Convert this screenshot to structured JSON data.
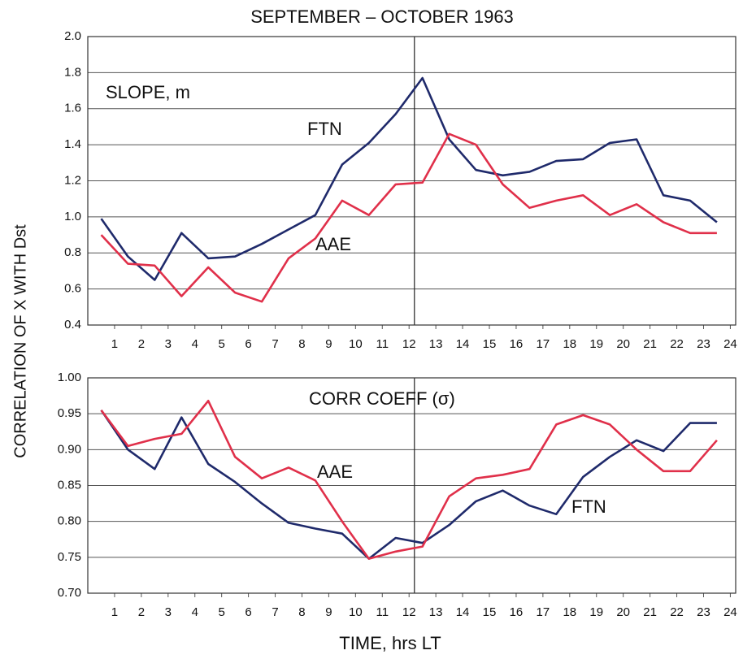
{
  "title": "SEPTEMBER – OCTOBER 1963",
  "y_label": "CORRELATION OF X WITH Dst",
  "x_label": "TIME, hrs LT",
  "chart_data": [
    {
      "type": "line",
      "subtitle": "SLOPE, m",
      "x": [
        0.5,
        1.5,
        2.5,
        3.5,
        4.5,
        5.5,
        6.5,
        7.5,
        8.5,
        9.5,
        10.5,
        11.5,
        12.5,
        13.5,
        14.5,
        15.5,
        16.5,
        17.5,
        18.5,
        19.5,
        20.5,
        21.5,
        22.5,
        23.5
      ],
      "series": [
        {
          "name": "FTN",
          "color": "#1f2a6b",
          "values": [
            0.99,
            0.78,
            0.65,
            0.91,
            0.77,
            0.78,
            0.85,
            0.93,
            1.01,
            1.29,
            1.41,
            1.57,
            1.77,
            1.43,
            1.26,
            1.23,
            1.25,
            1.31,
            1.32,
            1.41,
            1.43,
            1.12,
            1.09,
            0.97
          ]
        },
        {
          "name": "AAE",
          "color": "#e0304a",
          "values": [
            0.9,
            0.74,
            0.73,
            0.56,
            0.72,
            0.58,
            0.53,
            0.77,
            0.88,
            1.09,
            1.01,
            1.18,
            1.19,
            1.46,
            1.4,
            1.18,
            1.05,
            1.09,
            1.12,
            1.01,
            1.07,
            0.97,
            0.91,
            0.91
          ]
        }
      ],
      "xlim": [
        0,
        24.2
      ],
      "xticks": [
        1,
        2,
        3,
        4,
        5,
        6,
        7,
        8,
        9,
        10,
        11,
        12,
        13,
        14,
        15,
        16,
        17,
        18,
        19,
        20,
        21,
        22,
        23,
        24
      ],
      "ylim": [
        0.4,
        2.0
      ],
      "yticks": [
        0.4,
        0.6,
        0.8,
        {
          "value": 1.0,
          "label": "1.0"
        },
        1.2,
        1.4,
        1.6,
        1.8,
        {
          "value": 2.0,
          "label": "2.0"
        }
      ],
      "vlines": [
        12.2
      ],
      "grid": true
    },
    {
      "type": "line",
      "subtitle": "CORR COEFF (σ)",
      "x": [
        0.5,
        1.5,
        2.5,
        3.5,
        4.5,
        5.5,
        6.5,
        7.5,
        8.5,
        9.5,
        10.5,
        11.5,
        12.5,
        13.5,
        14.5,
        15.5,
        16.5,
        17.5,
        18.5,
        19.5,
        20.5,
        21.5,
        22.5,
        23.5
      ],
      "series": [
        {
          "name": "FTN",
          "color": "#1f2a6b",
          "values": [
            0.955,
            0.9,
            0.873,
            0.945,
            0.88,
            0.855,
            0.825,
            0.798,
            0.79,
            0.783,
            0.748,
            0.777,
            0.77,
            0.795,
            0.828,
            0.843,
            0.822,
            0.81,
            0.862,
            0.89,
            0.913,
            0.898,
            0.937,
            0.937
          ]
        },
        {
          "name": "AAE",
          "color": "#e0304a",
          "values": [
            0.955,
            0.905,
            0.915,
            0.922,
            0.968,
            0.89,
            0.86,
            0.875,
            0.857,
            0.8,
            0.748,
            0.758,
            0.765,
            0.835,
            0.86,
            0.865,
            0.873,
            0.935,
            0.948,
            0.935,
            0.9,
            0.87,
            0.87,
            0.913
          ]
        }
      ],
      "xlim": [
        0,
        24.2
      ],
      "xticks": [
        1,
        2,
        3,
        4,
        5,
        6,
        7,
        8,
        9,
        10,
        11,
        12,
        13,
        14,
        15,
        16,
        17,
        18,
        19,
        20,
        21,
        22,
        23,
        24
      ],
      "ylim": [
        0.7,
        1.0
      ],
      "yticks": [
        {
          "value": 0.7,
          "label": "0.70"
        },
        0.75,
        {
          "value": 0.8,
          "label": "0.80"
        },
        0.85,
        {
          "value": 0.9,
          "label": "0.90"
        },
        0.95,
        {
          "value": 1.0,
          "label": "1.00"
        }
      ],
      "vlines": [
        12.2
      ],
      "grid": true
    }
  ]
}
